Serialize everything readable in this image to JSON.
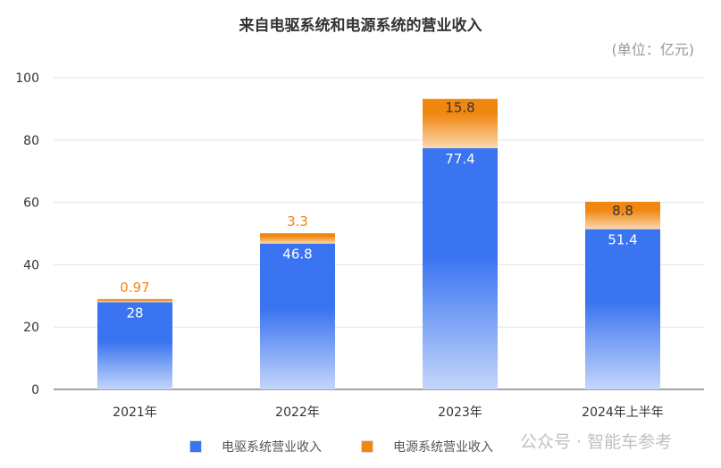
{
  "chart_data": {
    "type": "bar",
    "stacked": true,
    "title": "来自电驱系统和电源系统的营业收入",
    "unit_label": "(单位：亿元)",
    "categories": [
      "2021年",
      "2022年",
      "2023年",
      "2024年上半年"
    ],
    "series": [
      {
        "name": "电驱系统营业收入",
        "values": [
          28,
          46.8,
          77.4,
          51.4
        ],
        "color": "#3a74f0"
      },
      {
        "name": "电源系统营业收入",
        "values": [
          0.97,
          3.3,
          15.8,
          8.8
        ],
        "color": "#f0870f"
      }
    ],
    "ylim": [
      0,
      100
    ],
    "yticks": [
      0,
      20,
      40,
      60,
      80,
      100
    ],
    "grid": true,
    "legend": "bottom"
  },
  "watermark": "公众号 · 智能车参考"
}
